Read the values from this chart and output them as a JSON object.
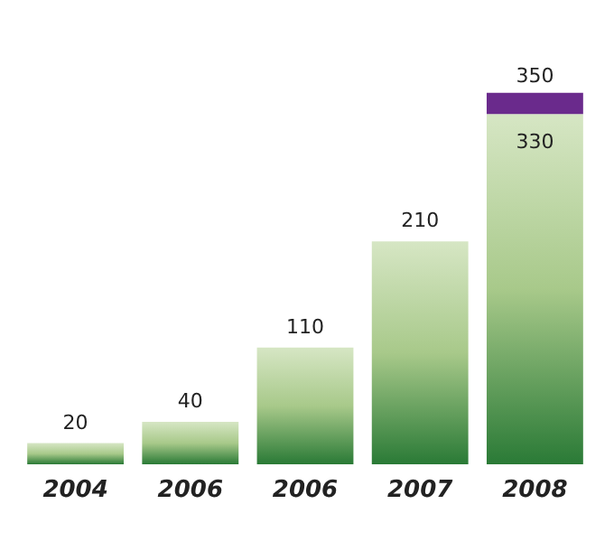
{
  "chart_data": {
    "type": "bar",
    "stacked": true,
    "categories": [
      "2004",
      "2006",
      "2006",
      "2007",
      "2008"
    ],
    "series": [
      {
        "color": "#2a7a36",
        "values": [
          20,
          40,
          110,
          210,
          330
        ],
        "value_labels": [
          "20",
          "40",
          "110",
          "210",
          "330"
        ]
      },
      {
        "color": "#6a2a8c",
        "values": [
          null,
          null,
          null,
          null,
          20
        ]
      }
    ],
    "totals": [
      null,
      null,
      null,
      null,
      "350"
    ]
  }
}
